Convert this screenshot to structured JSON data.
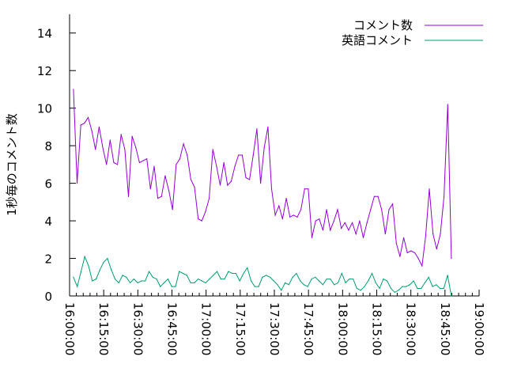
{
  "chart_data": {
    "type": "line",
    "title": "",
    "xlabel": "",
    "ylabel": "1秒毎のコメント数",
    "xlim_minutes_since_1600": [
      0,
      180
    ],
    "ylim": [
      0,
      15
    ],
    "x_tick_labels": [
      "16:00:00",
      "16:15:00",
      "16:30:00",
      "16:45:00",
      "17:00:00",
      "17:15:00",
      "17:30:00",
      "17:45:00",
      "18:00:00",
      "18:15:00",
      "18:30:00",
      "18:45:00",
      "19:00:00"
    ],
    "y_tick_labels": [
      "0",
      "2",
      "4",
      "6",
      "8",
      "10",
      "12",
      "14"
    ],
    "legend_position": "top-right",
    "grid": false,
    "series": [
      {
        "name": "コメント数",
        "color": "#9400d3",
        "x_start_min": 1.7,
        "x_end_min": 167.8,
        "values": [
          11.0,
          6.0,
          9.1,
          9.2,
          9.5,
          8.8,
          7.8,
          9.0,
          7.9,
          7.0,
          8.3,
          7.1,
          7.0,
          8.6,
          7.8,
          5.3,
          8.5,
          7.9,
          7.1,
          7.2,
          7.3,
          5.7,
          6.9,
          5.2,
          5.3,
          6.4,
          5.6,
          4.6,
          7.0,
          7.3,
          8.1,
          7.5,
          6.2,
          5.8,
          4.1,
          4.0,
          4.5,
          5.2,
          7.8,
          6.9,
          5.9,
          7.1,
          5.9,
          6.1,
          6.9,
          7.5,
          7.5,
          6.3,
          6.2,
          7.5,
          8.9,
          6.0,
          7.9,
          9.0,
          5.7,
          4.3,
          4.8,
          4.1,
          5.2,
          4.2,
          4.3,
          4.2,
          4.6,
          5.7,
          5.7,
          3.1,
          4.0,
          4.1,
          3.5,
          4.6,
          3.5,
          4.0,
          4.6,
          3.6,
          3.9,
          3.5,
          3.9,
          3.3,
          4.0,
          3.1,
          3.9,
          4.6,
          5.3,
          5.3,
          4.6,
          3.3,
          4.6,
          4.9,
          2.8,
          2.1,
          3.1,
          2.3,
          2.4,
          2.3,
          2.0,
          1.6,
          3.2,
          5.7,
          3.3,
          2.5,
          3.3,
          5.3,
          10.2,
          2.0
        ]
      },
      {
        "name": "英語コメント",
        "color": "#009e73",
        "x_start_min": 1.7,
        "x_end_min": 167.8,
        "values": [
          1.0,
          0.5,
          1.3,
          2.1,
          1.6,
          0.8,
          0.9,
          1.4,
          1.8,
          2.0,
          1.4,
          0.9,
          0.7,
          1.1,
          1.0,
          0.7,
          0.9,
          0.7,
          0.8,
          0.8,
          1.3,
          1.0,
          0.9,
          0.5,
          0.7,
          0.9,
          0.5,
          0.5,
          1.3,
          1.2,
          1.1,
          0.7,
          0.7,
          0.9,
          0.8,
          0.7,
          0.9,
          1.1,
          1.3,
          0.9,
          0.9,
          1.3,
          1.2,
          1.2,
          0.8,
          1.2,
          1.5,
          0.8,
          0.5,
          0.5,
          1.0,
          1.1,
          1.0,
          0.8,
          0.6,
          0.3,
          0.7,
          0.6,
          1.0,
          1.2,
          0.8,
          0.6,
          0.5,
          0.9,
          1.0,
          0.8,
          0.6,
          0.9,
          0.9,
          0.6,
          0.7,
          1.2,
          0.7,
          0.9,
          0.9,
          0.4,
          0.3,
          0.5,
          0.8,
          1.2,
          0.7,
          0.4,
          0.9,
          0.8,
          0.4,
          0.2,
          0.3,
          0.5,
          0.5,
          0.6,
          0.8,
          0.4,
          0.4,
          0.7,
          1.0,
          0.5,
          0.6,
          0.4,
          0.4,
          1.1,
          0.0
        ]
      }
    ]
  }
}
